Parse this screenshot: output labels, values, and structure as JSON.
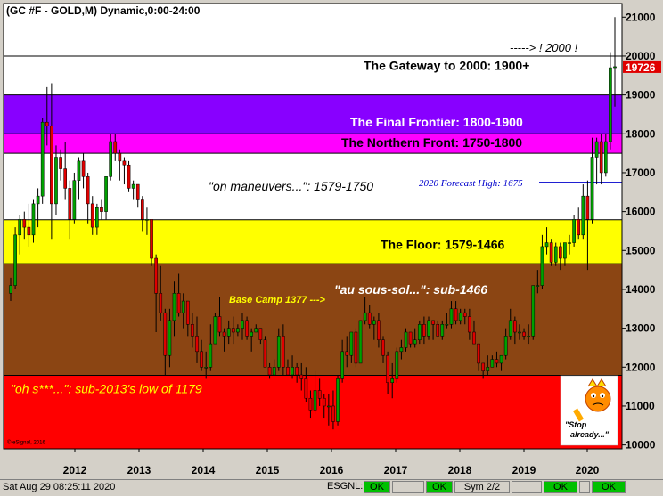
{
  "header": {
    "title": "(GC #F - GOLD,M) Dynamic,0:00-24:00"
  },
  "colors": {
    "background": "#ffffff",
    "up_candle": "#00a000",
    "down_candle": "#e00000",
    "last_price_tag": "#e00000",
    "zone_purple": "#8800ff",
    "zone_magenta": "#ff00ff",
    "zone_yellow": "#ffff00",
    "zone_brown": "#8b4513",
    "zone_red": "#ff0000",
    "forecast_line": "#0000cc",
    "status_ok": "#00c000"
  },
  "chart_data": {
    "type": "candlestick",
    "title": "(GC #F - GOLD,M) Dynamic,0:00-24:00",
    "xlabel": "",
    "ylabel": "",
    "x_ticks": [
      "2012",
      "2013",
      "2014",
      "2015",
      "2016",
      "2017",
      "2018",
      "2019",
      "2020"
    ],
    "y_ticks": [
      "10000",
      "11000",
      "12000",
      "13000",
      "14000",
      "15000",
      "16000",
      "17000",
      "18000",
      "19000",
      "20000",
      "21000"
    ],
    "ylim": [
      9900,
      21350
    ],
    "grid": false,
    "last_price": "19726",
    "forecast_line": {
      "value": 16750,
      "label": "2020 Forecast High:  1675"
    },
    "zones": [
      {
        "from": 20000,
        "to": 21350,
        "label": "",
        "color": "#ffffff"
      },
      {
        "from": 19000,
        "to": 20000,
        "label": "The Gateway to 2000:  1900+",
        "color": "#ffffff"
      },
      {
        "from": 18000,
        "to": 19000,
        "label": "The Final Frontier:  1800-1900",
        "color": "#8800ff"
      },
      {
        "from": 17500,
        "to": 18000,
        "label": "The Northern Front:  1750-1800",
        "color": "#ff00ff"
      },
      {
        "from": 15790,
        "to": 17500,
        "label": "\"on maneuvers...\":  1579-1750",
        "color": "#ffffff"
      },
      {
        "from": 14660,
        "to": 15790,
        "label": "The Floor:  1579-1466",
        "color": "#ffff00"
      },
      {
        "from": 11790,
        "to": 14660,
        "label": "\"au sous-sol...\":  sub-1466",
        "color": "#8b4513"
      },
      {
        "from": 9900,
        "to": 11790,
        "label": "\"oh s***...\":  sub-2013's low of 1179",
        "color": "#ff0000"
      }
    ],
    "annotations": {
      "target_2000": "-----> ! 2000 !",
      "base_camp": "Base Camp 1377 --->",
      "stop_already": "\"Stop already...\"",
      "copyright": "© eSignal, 2016"
    },
    "candles": [
      {
        "o": 13900,
        "h": 14300,
        "l": 13700,
        "c": 14100
      },
      {
        "o": 14100,
        "h": 15600,
        "l": 14000,
        "c": 15400
      },
      {
        "o": 15400,
        "h": 15900,
        "l": 14900,
        "c": 15800
      },
      {
        "o": 15800,
        "h": 16000,
        "l": 15300,
        "c": 15600
      },
      {
        "o": 15600,
        "h": 16200,
        "l": 15100,
        "c": 15400
      },
      {
        "o": 15400,
        "h": 16300,
        "l": 15200,
        "c": 16200
      },
      {
        "o": 16200,
        "h": 16600,
        "l": 15600,
        "c": 16400
      },
      {
        "o": 16400,
        "h": 18400,
        "l": 16200,
        "c": 18300
      },
      {
        "o": 18300,
        "h": 19200,
        "l": 17700,
        "c": 18200
      },
      {
        "o": 18200,
        "h": 19300,
        "l": 15300,
        "c": 16200
      },
      {
        "o": 16200,
        "h": 17700,
        "l": 15900,
        "c": 17400
      },
      {
        "o": 17400,
        "h": 17600,
        "l": 16800,
        "c": 17100
      },
      {
        "o": 17100,
        "h": 17800,
        "l": 16300,
        "c": 16600
      },
      {
        "o": 16600,
        "h": 16800,
        "l": 15300,
        "c": 15800
      },
      {
        "o": 15800,
        "h": 17000,
        "l": 15700,
        "c": 16800
      },
      {
        "o": 16800,
        "h": 17400,
        "l": 16300,
        "c": 17300
      },
      {
        "o": 17300,
        "h": 17500,
        "l": 16600,
        "c": 16900
      },
      {
        "o": 16900,
        "h": 17000,
        "l": 15700,
        "c": 16200
      },
      {
        "o": 16200,
        "h": 16400,
        "l": 15400,
        "c": 15600
      },
      {
        "o": 15600,
        "h": 16200,
        "l": 15400,
        "c": 16100
      },
      {
        "o": 16100,
        "h": 16300,
        "l": 15800,
        "c": 16000
      },
      {
        "o": 16000,
        "h": 16900,
        "l": 15800,
        "c": 16900
      },
      {
        "o": 16900,
        "h": 18000,
        "l": 16800,
        "c": 17800
      },
      {
        "o": 17800,
        "h": 18000,
        "l": 17300,
        "c": 17500
      },
      {
        "o": 17500,
        "h": 17600,
        "l": 16800,
        "c": 17300
      },
      {
        "o": 17300,
        "h": 17400,
        "l": 16700,
        "c": 17200
      },
      {
        "o": 17200,
        "h": 17300,
        "l": 16500,
        "c": 16600
      },
      {
        "o": 16600,
        "h": 16800,
        "l": 16300,
        "c": 16700
      },
      {
        "o": 16700,
        "h": 16700,
        "l": 16100,
        "c": 16300
      },
      {
        "o": 16300,
        "h": 16400,
        "l": 15500,
        "c": 15800
      },
      {
        "o": 15800,
        "h": 16100,
        "l": 15400,
        "c": 15800
      },
      {
        "o": 15800,
        "h": 15800,
        "l": 14600,
        "c": 14800
      },
      {
        "o": 14800,
        "h": 14900,
        "l": 12900,
        "c": 13900
      },
      {
        "o": 13900,
        "h": 14600,
        "l": 13200,
        "c": 13400
      },
      {
        "o": 13400,
        "h": 13500,
        "l": 11800,
        "c": 12300
      },
      {
        "o": 12300,
        "h": 13500,
        "l": 12000,
        "c": 13200
      },
      {
        "o": 13200,
        "h": 14200,
        "l": 12800,
        "c": 13900
      },
      {
        "o": 13900,
        "h": 14400,
        "l": 13300,
        "c": 13400
      },
      {
        "o": 13400,
        "h": 13900,
        "l": 13000,
        "c": 13700
      },
      {
        "o": 13700,
        "h": 13700,
        "l": 12800,
        "c": 13100
      },
      {
        "o": 13100,
        "h": 13400,
        "l": 12500,
        "c": 12800
      },
      {
        "o": 12800,
        "h": 13300,
        "l": 12100,
        "c": 12400
      },
      {
        "o": 12400,
        "h": 12700,
        "l": 11900,
        "c": 12000
      },
      {
        "o": 12000,
        "h": 12400,
        "l": 11700,
        "c": 12000
      },
      {
        "o": 12000,
        "h": 13100,
        "l": 11900,
        "c": 12600
      },
      {
        "o": 12600,
        "h": 13400,
        "l": 12600,
        "c": 13300
      },
      {
        "o": 13300,
        "h": 13800,
        "l": 12800,
        "c": 12900
      },
      {
        "o": 12900,
        "h": 13000,
        "l": 12400,
        "c": 12800
      },
      {
        "o": 12800,
        "h": 13200,
        "l": 12600,
        "c": 13000
      },
      {
        "o": 13000,
        "h": 13300,
        "l": 12600,
        "c": 12900
      },
      {
        "o": 12900,
        "h": 13100,
        "l": 12800,
        "c": 13000
      },
      {
        "o": 13000,
        "h": 13400,
        "l": 12700,
        "c": 13200
      },
      {
        "o": 13200,
        "h": 13300,
        "l": 12700,
        "c": 12800
      },
      {
        "o": 12800,
        "h": 13000,
        "l": 12400,
        "c": 12900
      },
      {
        "o": 12900,
        "h": 13100,
        "l": 12900,
        "c": 13000
      },
      {
        "o": 13000,
        "h": 13000,
        "l": 12600,
        "c": 12700
      },
      {
        "o": 12700,
        "h": 12800,
        "l": 12000,
        "c": 12000
      },
      {
        "o": 12000,
        "h": 12100,
        "l": 11700,
        "c": 11800
      },
      {
        "o": 11800,
        "h": 12200,
        "l": 11800,
        "c": 12000
      },
      {
        "o": 12000,
        "h": 13000,
        "l": 11900,
        "c": 12800
      },
      {
        "o": 12800,
        "h": 13100,
        "l": 11800,
        "c": 12000
      },
      {
        "o": 12000,
        "h": 12200,
        "l": 11900,
        "c": 11800
      },
      {
        "o": 11800,
        "h": 12300,
        "l": 11700,
        "c": 12000
      },
      {
        "o": 12000,
        "h": 12100,
        "l": 11600,
        "c": 11800
      },
      {
        "o": 11800,
        "h": 12100,
        "l": 11400,
        "c": 11700
      },
      {
        "o": 11700,
        "h": 12000,
        "l": 11100,
        "c": 11200
      },
      {
        "o": 11200,
        "h": 11400,
        "l": 10700,
        "c": 10900
      },
      {
        "o": 10900,
        "h": 11900,
        "l": 10800,
        "c": 11400
      },
      {
        "o": 11400,
        "h": 11700,
        "l": 11000,
        "c": 11200
      },
      {
        "o": 11200,
        "h": 11300,
        "l": 10700,
        "c": 11000
      },
      {
        "o": 11000,
        "h": 11300,
        "l": 10500,
        "c": 11000
      },
      {
        "o": 11000,
        "h": 11400,
        "l": 10400,
        "c": 10600
      },
      {
        "o": 10600,
        "h": 11800,
        "l": 10500,
        "c": 11700
      },
      {
        "o": 11700,
        "h": 12700,
        "l": 11600,
        "c": 12400
      },
      {
        "o": 12400,
        "h": 12800,
        "l": 12000,
        "c": 12300
      },
      {
        "o": 12300,
        "h": 12900,
        "l": 12100,
        "c": 12900
      },
      {
        "o": 12900,
        "h": 13000,
        "l": 12000,
        "c": 12100
      },
      {
        "o": 12100,
        "h": 13200,
        "l": 12100,
        "c": 13200
      },
      {
        "o": 13200,
        "h": 13800,
        "l": 13100,
        "c": 13400
      },
      {
        "o": 13400,
        "h": 13600,
        "l": 13000,
        "c": 13100
      },
      {
        "o": 13100,
        "h": 13300,
        "l": 12700,
        "c": 13200
      },
      {
        "o": 13200,
        "h": 13400,
        "l": 12500,
        "c": 12700
      },
      {
        "o": 12700,
        "h": 12800,
        "l": 12100,
        "c": 12300
      },
      {
        "o": 12300,
        "h": 12400,
        "l": 11300,
        "c": 11600
      },
      {
        "o": 11600,
        "h": 12100,
        "l": 11200,
        "c": 11700
      },
      {
        "o": 11700,
        "h": 12500,
        "l": 11600,
        "c": 12400
      },
      {
        "o": 12400,
        "h": 12700,
        "l": 12200,
        "c": 12500
      },
      {
        "o": 12500,
        "h": 13000,
        "l": 12400,
        "c": 12900
      },
      {
        "o": 12900,
        "h": 12900,
        "l": 12500,
        "c": 12600
      },
      {
        "o": 12600,
        "h": 13000,
        "l": 12500,
        "c": 12700
      },
      {
        "o": 12700,
        "h": 13200,
        "l": 12600,
        "c": 13100
      },
      {
        "o": 13100,
        "h": 13300,
        "l": 12600,
        "c": 12800
      },
      {
        "o": 12800,
        "h": 13300,
        "l": 12700,
        "c": 13200
      },
      {
        "o": 13200,
        "h": 13200,
        "l": 12700,
        "c": 13100
      },
      {
        "o": 13100,
        "h": 13200,
        "l": 12800,
        "c": 12800
      },
      {
        "o": 12800,
        "h": 13200,
        "l": 12700,
        "c": 13100
      },
      {
        "o": 13100,
        "h": 13400,
        "l": 13000,
        "c": 13100
      },
      {
        "o": 13100,
        "h": 13700,
        "l": 13000,
        "c": 13500
      },
      {
        "o": 13500,
        "h": 13700,
        "l": 13100,
        "c": 13200
      },
      {
        "o": 13200,
        "h": 13500,
        "l": 13100,
        "c": 13400
      },
      {
        "o": 13400,
        "h": 13500,
        "l": 13100,
        "c": 13300
      },
      {
        "o": 13300,
        "h": 13500,
        "l": 12700,
        "c": 12900
      },
      {
        "o": 12900,
        "h": 13200,
        "l": 12600,
        "c": 12600
      },
      {
        "o": 12600,
        "h": 12600,
        "l": 11900,
        "c": 12100
      },
      {
        "o": 12100,
        "h": 12100,
        "l": 11700,
        "c": 11900
      },
      {
        "o": 11900,
        "h": 12300,
        "l": 11800,
        "c": 12000
      },
      {
        "o": 12000,
        "h": 12300,
        "l": 12000,
        "c": 12200
      },
      {
        "o": 12200,
        "h": 12400,
        "l": 12000,
        "c": 12100
      },
      {
        "o": 12100,
        "h": 12300,
        "l": 11900,
        "c": 12300
      },
      {
        "o": 12300,
        "h": 13000,
        "l": 12200,
        "c": 12800
      },
      {
        "o": 12800,
        "h": 13500,
        "l": 12700,
        "c": 13200
      },
      {
        "o": 13200,
        "h": 13300,
        "l": 12600,
        "c": 12900
      },
      {
        "o": 12900,
        "h": 13100,
        "l": 12700,
        "c": 12900
      },
      {
        "o": 12900,
        "h": 13000,
        "l": 12700,
        "c": 12800
      },
      {
        "o": 12800,
        "h": 13100,
        "l": 12600,
        "c": 12800
      },
      {
        "o": 12800,
        "h": 14100,
        "l": 12700,
        "c": 14100
      },
      {
        "o": 14100,
        "h": 14500,
        "l": 13900,
        "c": 14100
      },
      {
        "o": 14100,
        "h": 15400,
        "l": 14000,
        "c": 15100
      },
      {
        "o": 15100,
        "h": 15600,
        "l": 14900,
        "c": 15200
      },
      {
        "o": 15200,
        "h": 15300,
        "l": 14600,
        "c": 14700
      },
      {
        "o": 14700,
        "h": 15200,
        "l": 14600,
        "c": 15100
      },
      {
        "o": 15100,
        "h": 15200,
        "l": 14500,
        "c": 14800
      },
      {
        "o": 14800,
        "h": 15200,
        "l": 14600,
        "c": 15200
      },
      {
        "o": 15200,
        "h": 15400,
        "l": 14900,
        "c": 15200
      },
      {
        "o": 15200,
        "h": 15900,
        "l": 15100,
        "c": 15800
      },
      {
        "o": 15800,
        "h": 16100,
        "l": 15300,
        "c": 15400
      },
      {
        "o": 15400,
        "h": 16700,
        "l": 15300,
        "c": 16400
      },
      {
        "o": 16400,
        "h": 16800,
        "l": 14500,
        "c": 15800
      },
      {
        "o": 15800,
        "h": 17900,
        "l": 15700,
        "c": 17400
      },
      {
        "o": 17400,
        "h": 17900,
        "l": 16700,
        "c": 17800
      },
      {
        "o": 17800,
        "h": 18000,
        "l": 16700,
        "c": 17000
      },
      {
        "o": 17000,
        "h": 18000,
        "l": 16900,
        "c": 17800
      },
      {
        "o": 17800,
        "h": 20100,
        "l": 17600,
        "c": 19700
      },
      {
        "o": 19700,
        "h": 21000,
        "l": 18700,
        "c": 19726
      }
    ]
  },
  "status_bar": {
    "datetime": "Sat Aug 29 08:25:11 2020",
    "esgnl_label": "ESGNL:",
    "ok1": "OK",
    "ok2": "OK",
    "sym": "Sym 2/2",
    "ok3": "OK",
    "ok4": "OK"
  }
}
